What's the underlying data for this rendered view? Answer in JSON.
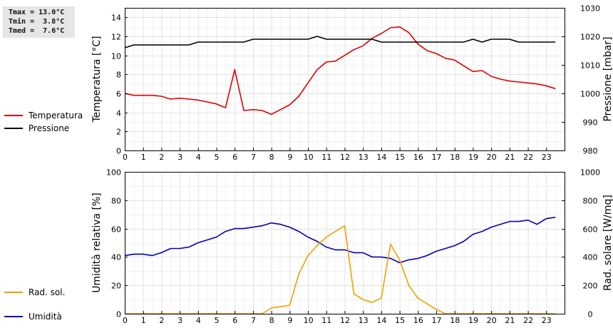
{
  "stats": {
    "tmax": "Tmax = 13.0°C",
    "tmin": "Tmin =  3.8°C",
    "tmed": "Tmed =  7.6°C"
  },
  "legends": {
    "top": [
      {
        "label": "Temperatura",
        "color": "#dd0000"
      },
      {
        "label": "Pressione",
        "color": "#000000"
      }
    ],
    "bottom": [
      {
        "label": "Umidità",
        "color": "#0000bb"
      },
      {
        "label": "Rad. sol.",
        "color": "#f0a000"
      }
    ]
  },
  "chart_data": [
    {
      "type": "line",
      "xlim": [
        0,
        24
      ],
      "x_ticks": [
        0,
        1,
        2,
        3,
        4,
        5,
        6,
        7,
        8,
        9,
        10,
        11,
        12,
        13,
        14,
        15,
        16,
        17,
        18,
        19,
        20,
        21,
        22,
        23
      ],
      "ylabel": "Temperatura [°C]",
      "ylim": [
        0,
        15
      ],
      "y_ticks": [
        0,
        2,
        4,
        6,
        8,
        10,
        12,
        14
      ],
      "y2label": "Pressione [mbar]",
      "y2lim": [
        980,
        1030
      ],
      "y2_ticks": [
        980,
        990,
        1000,
        1010,
        1020,
        1030
      ],
      "grid": true,
      "series": [
        {
          "name": "Temperatura",
          "color": "#dd0000",
          "axis": "left",
          "x": [
            0,
            0.5,
            1,
            1.5,
            2,
            2.5,
            3,
            3.5,
            4,
            4.5,
            5,
            5.5,
            6,
            6.5,
            7,
            7.5,
            8,
            8.5,
            9,
            9.5,
            10,
            10.5,
            11,
            11.5,
            12,
            12.5,
            13,
            13.5,
            14,
            14.5,
            15,
            15.5,
            16,
            16.5,
            17,
            17.5,
            18,
            18.5,
            19,
            19.5,
            20,
            20.5,
            21,
            21.5,
            22,
            22.5,
            23,
            23.5
          ],
          "y": [
            6.0,
            5.8,
            5.8,
            5.8,
            5.7,
            5.4,
            5.5,
            5.4,
            5.3,
            5.1,
            4.9,
            4.5,
            8.5,
            4.2,
            4.3,
            4.2,
            3.8,
            4.3,
            4.8,
            5.7,
            7.1,
            8.5,
            9.3,
            9.4,
            10.0,
            10.6,
            11.0,
            11.8,
            12.3,
            12.9,
            13.0,
            12.4,
            11.2,
            10.5,
            10.2,
            9.7,
            9.5,
            8.9,
            8.3,
            8.4,
            7.8,
            7.5,
            7.3,
            7.2,
            7.1,
            7.0,
            6.8,
            6.5
          ]
        },
        {
          "name": "Pressione",
          "color": "#000000",
          "axis": "right",
          "x": [
            0,
            0.5,
            1,
            1.5,
            2,
            2.5,
            3,
            3.5,
            4,
            4.5,
            5,
            5.5,
            6,
            6.5,
            7,
            7.5,
            8,
            8.5,
            9,
            9.5,
            10,
            10.5,
            11,
            11.5,
            12,
            12.5,
            13,
            13.5,
            14,
            14.5,
            15,
            15.5,
            16,
            16.5,
            17,
            17.5,
            18,
            18.5,
            19,
            19.5,
            20,
            20.5,
            21,
            21.5,
            22,
            22.5,
            23,
            23.5
          ],
          "y": [
            1016,
            1017,
            1017,
            1017,
            1017,
            1017,
            1017,
            1017,
            1018,
            1018,
            1018,
            1018,
            1018,
            1018,
            1019,
            1019,
            1019,
            1019,
            1019,
            1019,
            1019,
            1020,
            1019,
            1019,
            1019,
            1019,
            1019,
            1019,
            1018,
            1018,
            1018,
            1018,
            1018,
            1018,
            1018,
            1018,
            1018,
            1018,
            1019,
            1018,
            1019,
            1019,
            1019,
            1018,
            1018,
            1018,
            1018,
            1018
          ]
        }
      ]
    },
    {
      "type": "line",
      "xlim": [
        0,
        24
      ],
      "x_ticks": [
        0,
        1,
        2,
        3,
        4,
        5,
        6,
        7,
        8,
        9,
        10,
        11,
        12,
        13,
        14,
        15,
        16,
        17,
        18,
        19,
        20,
        21,
        22,
        23
      ],
      "ylabel": "Umidità relativa [%]",
      "ylim": [
        0,
        100
      ],
      "y_ticks": [
        0,
        20,
        40,
        60,
        80,
        100
      ],
      "y2label": "Rad. solare [W/mq]",
      "y2lim": [
        0,
        1000
      ],
      "y2_ticks": [
        0,
        200,
        400,
        600,
        800,
        1000
      ],
      "grid": true,
      "series": [
        {
          "name": "Umidità",
          "color": "#0000bb",
          "axis": "left",
          "x": [
            0,
            0.5,
            1,
            1.5,
            2,
            2.5,
            3,
            3.5,
            4,
            4.5,
            5,
            5.5,
            6,
            6.5,
            7,
            7.5,
            8,
            8.5,
            9,
            9.5,
            10,
            10.5,
            11,
            11.5,
            12,
            12.5,
            13,
            13.5,
            14,
            14.5,
            15,
            15.5,
            16,
            16.5,
            17,
            17.5,
            18,
            18.5,
            19,
            19.5,
            20,
            20.5,
            21,
            21.5,
            22,
            22.5,
            23,
            23.5
          ],
          "y": [
            41,
            42,
            42,
            41,
            43,
            46,
            46,
            47,
            50,
            52,
            54,
            58,
            60,
            60,
            61,
            62,
            64,
            63,
            61,
            58,
            54,
            51,
            47,
            45,
            45,
            43,
            43,
            40,
            40,
            39,
            36,
            38,
            39,
            41,
            44,
            46,
            48,
            51,
            56,
            58,
            61,
            63,
            65,
            65,
            66,
            63,
            67,
            68
          ]
        },
        {
          "name": "Rad. sol.",
          "color": "#f0a000",
          "axis": "right",
          "x": [
            0,
            0.5,
            1,
            1.5,
            2,
            2.5,
            3,
            3.5,
            4,
            4.5,
            5,
            5.5,
            6,
            6.5,
            7,
            7.5,
            8,
            8.5,
            9,
            9.5,
            10,
            10.5,
            11,
            11.5,
            12,
            12.5,
            13,
            13.5,
            14,
            14.5,
            15,
            15.5,
            16,
            16.5,
            17,
            17.5,
            18,
            18.5,
            19,
            19.5,
            20,
            20.5,
            21,
            21.5,
            22,
            22.5,
            23,
            23.5
          ],
          "y": [
            0,
            0,
            0,
            0,
            0,
            0,
            0,
            0,
            0,
            0,
            0,
            0,
            0,
            0,
            0,
            0,
            40,
            50,
            60,
            280,
            410,
            480,
            540,
            580,
            620,
            140,
            100,
            80,
            110,
            490,
            380,
            200,
            110,
            70,
            30,
            0,
            0,
            0,
            0,
            0,
            0,
            0,
            0,
            0,
            0,
            0,
            0,
            0
          ]
        }
      ]
    }
  ]
}
